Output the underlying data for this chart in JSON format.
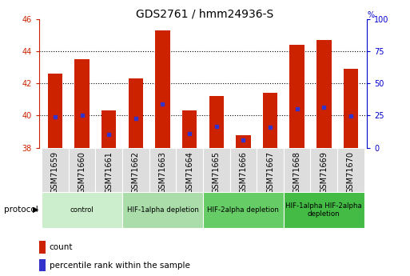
{
  "title": "GDS2761 / hmm24936-S",
  "samples": [
    "GSM71659",
    "GSM71660",
    "GSM71661",
    "GSM71662",
    "GSM71663",
    "GSM71664",
    "GSM71665",
    "GSM71666",
    "GSM71667",
    "GSM71668",
    "GSM71669",
    "GSM71670"
  ],
  "count_values": [
    42.6,
    43.5,
    40.3,
    42.3,
    45.3,
    40.3,
    41.2,
    38.8,
    41.4,
    44.4,
    44.7,
    42.9
  ],
  "count_base": 38.0,
  "percentile_values": [
    39.9,
    40.0,
    38.85,
    39.8,
    40.7,
    38.9,
    39.35,
    38.5,
    39.3,
    40.4,
    40.5,
    39.95
  ],
  "ylim_left": [
    38,
    46
  ],
  "ylim_right": [
    0,
    100
  ],
  "yticks_left": [
    38,
    40,
    42,
    44,
    46
  ],
  "yticks_right": [
    0,
    25,
    50,
    75,
    100
  ],
  "bar_color": "#cc2200",
  "blue_color": "#3333cc",
  "protocol_groups": [
    {
      "label": "control",
      "start": 0,
      "end": 2,
      "color": "#cceecc"
    },
    {
      "label": "HIF-1alpha depletion",
      "start": 3,
      "end": 5,
      "color": "#aaddaa"
    },
    {
      "label": "HIF-2alpha depletion",
      "start": 6,
      "end": 8,
      "color": "#66cc66"
    },
    {
      "label": "HIF-1alpha HIF-2alpha\ndepletion",
      "start": 9,
      "end": 11,
      "color": "#44bb44"
    }
  ],
  "bar_width": 0.55,
  "tick_label_color_left": "#cc2200",
  "tick_label_color_right": "#0000cc",
  "title_fontsize": 10,
  "axis_fontsize": 7,
  "label_fontsize": 7.5,
  "sample_box_color": "#dddddd"
}
